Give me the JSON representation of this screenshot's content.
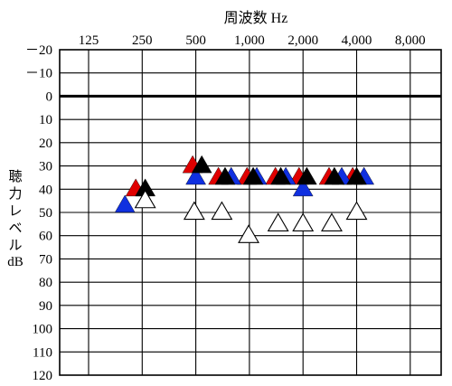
{
  "chart_data": {
    "type": "scatter",
    "title": "周波数 Hz",
    "xlabel": "周波数 Hz",
    "ylabel": "聴力レベル dB",
    "ylabel_parts": [
      "聴",
      "力",
      "レ",
      "ベ",
      "ル",
      "dB"
    ],
    "x_scale": "log2",
    "x_ticks": [
      125,
      250,
      500,
      1000,
      2000,
      4000,
      8000
    ],
    "x_tick_labels": [
      "125",
      "250",
      "500",
      "1,000",
      "2,000",
      "4,000",
      "8,000"
    ],
    "ylim": [
      -20,
      120
    ],
    "y_inverted": true,
    "y_ticks": [
      -20,
      -10,
      0,
      10,
      20,
      30,
      40,
      50,
      60,
      70,
      80,
      90,
      100,
      110,
      120
    ],
    "y_tick_labels": [
      "－20",
      "－10",
      "0",
      "10",
      "20",
      "30",
      "40",
      "50",
      "60",
      "70",
      "80",
      "90",
      "100",
      "110",
      "120"
    ],
    "reference_line": 0,
    "grid": true,
    "marker": "triangle",
    "series": [
      {
        "color": "#e00000",
        "points": [
          {
            "x": 230,
            "y": 40
          },
          {
            "x": 480,
            "y": 30
          },
          {
            "x": 670,
            "y": 35
          },
          {
            "x": 970,
            "y": 35
          },
          {
            "x": 1400,
            "y": 35
          },
          {
            "x": 1900,
            "y": 35
          },
          {
            "x": 2800,
            "y": 35
          },
          {
            "x": 3800,
            "y": 35
          }
        ]
      },
      {
        "color": "#1030e0",
        "points": [
          {
            "x": 200,
            "y": 47
          },
          {
            "x": 500,
            "y": 35
          },
          {
            "x": 790,
            "y": 35
          },
          {
            "x": 1100,
            "y": 35
          },
          {
            "x": 1600,
            "y": 35
          },
          {
            "x": 2000,
            "y": 40
          },
          {
            "x": 3300,
            "y": 35
          },
          {
            "x": 4400,
            "y": 35
          }
        ]
      },
      {
        "color": "#000000",
        "points": [
          {
            "x": 260,
            "y": 40
          },
          {
            "x": 540,
            "y": 30
          },
          {
            "x": 730,
            "y": 35
          },
          {
            "x": 1050,
            "y": 35
          },
          {
            "x": 1500,
            "y": 35
          },
          {
            "x": 2100,
            "y": 35
          },
          {
            "x": 3000,
            "y": 35
          },
          {
            "x": 4000,
            "y": 35
          }
        ]
      },
      {
        "color": "#ffffff",
        "points": [
          {
            "x": 260,
            "y": 45
          },
          {
            "x": 490,
            "y": 50
          },
          {
            "x": 700,
            "y": 50
          },
          {
            "x": 990,
            "y": 60
          },
          {
            "x": 1450,
            "y": 55
          },
          {
            "x": 2000,
            "y": 55
          },
          {
            "x": 2900,
            "y": 55
          },
          {
            "x": 4000,
            "y": 50
          }
        ]
      }
    ]
  }
}
